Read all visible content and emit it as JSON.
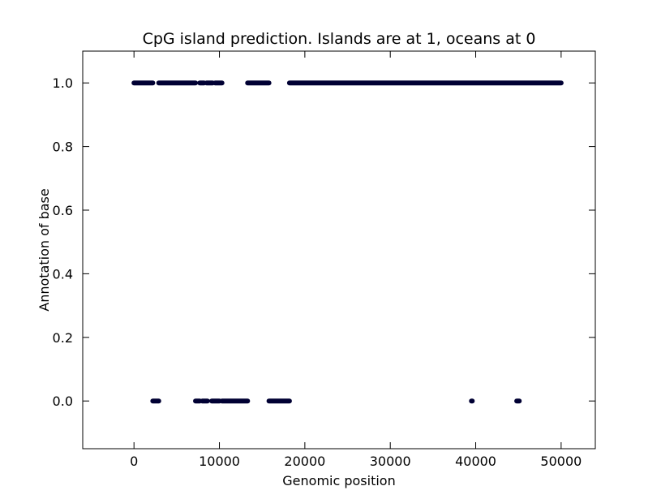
{
  "chart_data": {
    "type": "scatter",
    "title": "CpG island prediction. Islands are at 1, oceans at 0",
    "xlabel": "Genomic position",
    "ylabel": "Annotation of base",
    "xlim": [
      -6000,
      54000
    ],
    "ylim": [
      -0.15,
      1.1
    ],
    "xticks": [
      0,
      10000,
      20000,
      30000,
      40000,
      50000
    ],
    "xtick_labels": [
      "0",
      "10000",
      "20000",
      "30000",
      "40000",
      "50000"
    ],
    "yticks": [
      0.0,
      0.2,
      0.4,
      0.6,
      0.8,
      1.0
    ],
    "ytick_labels": [
      "0.0",
      "0.2",
      "0.4",
      "0.6",
      "0.8",
      "1.0"
    ],
    "grid": false,
    "marker_color": "#000033",
    "series": [
      {
        "segments": [
          {
            "x_start": 0,
            "x_end": 2200,
            "y": 1
          },
          {
            "x_start": 2900,
            "x_end": 7200,
            "y": 1
          },
          {
            "x_start": 7700,
            "x_end": 8200,
            "y": 1
          },
          {
            "x_start": 8500,
            "x_end": 9200,
            "y": 1
          },
          {
            "x_start": 9500,
            "x_end": 10300,
            "y": 1
          },
          {
            "x_start": 13300,
            "x_end": 15800,
            "y": 1
          },
          {
            "x_start": 18200,
            "x_end": 50000,
            "y": 1
          },
          {
            "x_start": 2200,
            "x_end": 2900,
            "y": 0
          },
          {
            "x_start": 7200,
            "x_end": 7700,
            "y": 0
          },
          {
            "x_start": 8000,
            "x_end": 8600,
            "y": 0
          },
          {
            "x_start": 9100,
            "x_end": 10000,
            "y": 0
          },
          {
            "x_start": 10300,
            "x_end": 13300,
            "y": 0
          },
          {
            "x_start": 15800,
            "x_end": 18200,
            "y": 0
          },
          {
            "x_start": 39500,
            "x_end": 39600,
            "y": 0
          },
          {
            "x_start": 44800,
            "x_end": 45100,
            "y": 0
          }
        ]
      }
    ]
  }
}
